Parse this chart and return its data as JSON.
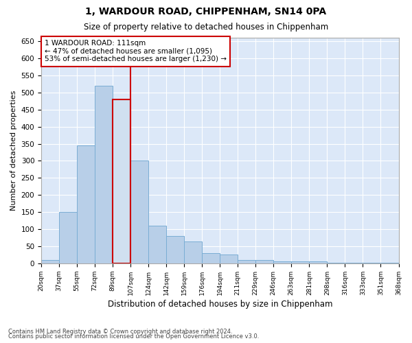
{
  "title": "1, WARDOUR ROAD, CHIPPENHAM, SN14 0PA",
  "subtitle": "Size of property relative to detached houses in Chippenham",
  "xlabel": "Distribution of detached houses by size in Chippenham",
  "ylabel": "Number of detached properties",
  "footnote1": "Contains HM Land Registry data © Crown copyright and database right 2024.",
  "footnote2": "Contains public sector information licensed under the Open Government Licence v3.0.",
  "bar_labels": [
    "20sqm",
    "37sqm",
    "55sqm",
    "72sqm",
    "89sqm",
    "107sqm",
    "124sqm",
    "142sqm",
    "159sqm",
    "176sqm",
    "194sqm",
    "211sqm",
    "229sqm",
    "246sqm",
    "263sqm",
    "281sqm",
    "298sqm",
    "316sqm",
    "333sqm",
    "351sqm",
    "368sqm"
  ],
  "bar_values": [
    10,
    150,
    345,
    520,
    480,
    300,
    110,
    80,
    65,
    30,
    25,
    10,
    10,
    5,
    5,
    5,
    2,
    2,
    2,
    2
  ],
  "bar_color": "#b8cfe8",
  "bar_edge_color": "#7aadd4",
  "highlight_bar_index": 4,
  "highlight_bar_color": "#d0e0f0",
  "highlight_bar_edge_color": "#cc0000",
  "vline_x_offset": 4.5,
  "vline_color": "#cc0000",
  "ylim": [
    0,
    660
  ],
  "yticks": [
    0,
    50,
    100,
    150,
    200,
    250,
    300,
    350,
    400,
    450,
    500,
    550,
    600,
    650
  ],
  "annotation_text": "1 WARDOUR ROAD: 111sqm\n← 47% of detached houses are smaller (1,095)\n53% of semi-detached houses are larger (1,230) →",
  "annotation_box_facecolor": "#ffffff",
  "annotation_box_edgecolor": "#cc0000",
  "fig_facecolor": "#ffffff",
  "plot_facecolor": "#dce8f8"
}
